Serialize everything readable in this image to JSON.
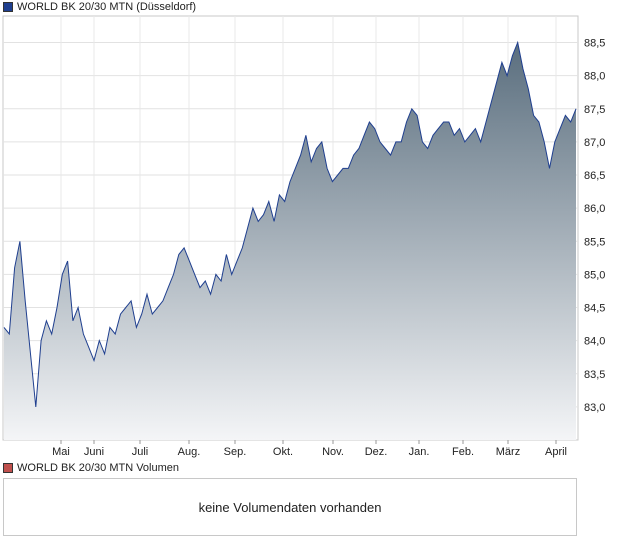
{
  "legend_main": {
    "label": "WORLD BK 20/30 MTN (Düsseldorf)",
    "color": "#1f3f8f"
  },
  "legend_volume": {
    "label": "WORLD BK 20/30 MTN Volumen",
    "color": "#c0504d"
  },
  "volume_message": "keine Volumendaten vorhanden",
  "chart_data": {
    "type": "area",
    "title": "",
    "xlabel": "",
    "ylabel": "",
    "ylim": [
      82.5,
      88.9
    ],
    "grid": true,
    "y_ticks": [
      83.0,
      83.5,
      84.0,
      84.5,
      85.0,
      85.5,
      86.0,
      86.5,
      87.0,
      87.5,
      88.0,
      88.5
    ],
    "y_tick_labels": [
      "83,0",
      "83,5",
      "84,0",
      "84,5",
      "85,0",
      "85,5",
      "86,0",
      "86,5",
      "87,0",
      "87,5",
      "88,0",
      "88,5"
    ],
    "x_ticks": [
      "Mai",
      "Juni",
      "Juli",
      "Aug.",
      "Sep.",
      "Okt.",
      "Nov.",
      "Dez.",
      "Jan.",
      "Feb.",
      "März",
      "April"
    ],
    "line_color": "#1f3f8f",
    "fill_top_color": "#5a6e7e",
    "fill_bottom_color": "#f4f5f7",
    "series": [
      {
        "values": [
          84.2,
          84.1,
          85.1,
          85.5,
          84.6,
          83.8,
          83.0,
          84.0,
          84.3,
          84.1,
          84.5,
          85.0,
          85.2,
          84.3,
          84.5,
          84.1,
          83.9,
          83.7,
          84.0,
          83.8,
          84.2,
          84.1,
          84.4,
          84.5,
          84.6,
          84.2,
          84.4,
          84.7,
          84.4,
          84.5,
          84.6,
          84.8,
          85.0,
          85.3,
          85.4,
          85.2,
          85.0,
          84.8,
          84.9,
          84.7,
          85.0,
          84.9,
          85.3,
          85.0,
          85.2,
          85.4,
          85.7,
          86.0,
          85.8,
          85.9,
          86.1,
          85.8,
          86.2,
          86.1,
          86.4,
          86.6,
          86.8,
          87.1,
          86.7,
          86.9,
          87.0,
          86.6,
          86.4,
          86.5,
          86.6,
          86.6,
          86.8,
          86.9,
          87.1,
          87.3,
          87.2,
          87.0,
          86.9,
          86.8,
          87.0,
          87.0,
          87.3,
          87.5,
          87.4,
          87.0,
          86.9,
          87.1,
          87.2,
          87.3,
          87.3,
          87.1,
          87.2,
          87.0,
          87.1,
          87.2,
          87.0,
          87.3,
          87.6,
          87.9,
          88.2,
          88.0,
          88.3,
          88.5,
          88.1,
          87.8,
          87.4,
          87.3,
          87.0,
          86.6,
          87.0,
          87.2,
          87.4,
          87.3,
          87.5
        ]
      }
    ]
  }
}
